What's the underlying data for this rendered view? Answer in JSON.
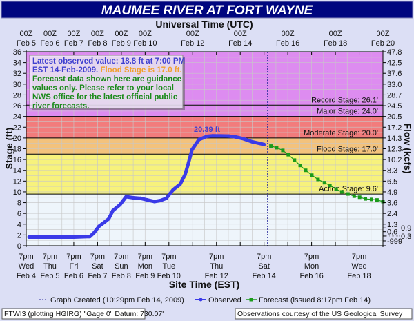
{
  "chart_data": {
    "type": "line",
    "title": "MAUMEE RIVER  AT FORT WAYNE",
    "top_axis_title": "Universal Time (UTC)",
    "top_ticks": [
      {
        "d": 0,
        "l1": "00Z",
        "l2": "Feb 5"
      },
      {
        "d": 1,
        "l1": "00Z",
        "l2": "Feb 6"
      },
      {
        "d": 2,
        "l1": "00Z",
        "l2": "Feb 7"
      },
      {
        "d": 3,
        "l1": "00Z",
        "l2": "Feb 8"
      },
      {
        "d": 4,
        "l1": "00Z",
        "l2": "Feb 9"
      },
      {
        "d": 5,
        "l1": "00Z",
        "l2": "Feb 10"
      },
      {
        "d": 7,
        "l1": "00Z",
        "l2": "Feb 12"
      },
      {
        "d": 9,
        "l1": "00Z",
        "l2": "Feb 14"
      },
      {
        "d": 11,
        "l1": "00Z",
        "l2": "Feb 16"
      },
      {
        "d": 13,
        "l1": "00Z",
        "l2": "Feb 18"
      },
      {
        "d": 15,
        "l1": "00Z",
        "l2": "Feb 20"
      }
    ],
    "xlabel": "Site Time (EST)",
    "x_unit": "days since 7pm EST Wed Feb 4",
    "xlim": [
      0,
      15
    ],
    "bottom_ticks": [
      {
        "d": 0,
        "l1": "7pm",
        "l2": "Wed",
        "l3": "Feb 4"
      },
      {
        "d": 1,
        "l1": "7pm",
        "l2": "Thu",
        "l3": "Feb 5"
      },
      {
        "d": 2,
        "l1": "7pm",
        "l2": "Fri",
        "l3": "Feb 6"
      },
      {
        "d": 3,
        "l1": "7pm",
        "l2": "Sat",
        "l3": "Feb 7"
      },
      {
        "d": 4,
        "l1": "7pm",
        "l2": "Sun",
        "l3": "Feb 8"
      },
      {
        "d": 5,
        "l1": "7pm",
        "l2": "Mon",
        "l3": "Feb 9"
      },
      {
        "d": 6,
        "l1": "7pm",
        "l2": "Tue",
        "l3": "Feb 10"
      },
      {
        "d": 8,
        "l1": "7pm",
        "l2": "Thu",
        "l3": "Feb 12"
      },
      {
        "d": 10,
        "l1": "7pm",
        "l2": "Sat",
        "l3": "Feb 14"
      },
      {
        "d": 12,
        "l1": "7pm",
        "l2": "Mon",
        "l3": "Feb 16"
      },
      {
        "d": 14,
        "l1": "7pm",
        "l2": "Wed",
        "l3": "Feb 18"
      }
    ],
    "ylabel": "Stage (ft)",
    "ylim": [
      0,
      36
    ],
    "y_ticks": [
      0,
      2,
      4,
      6,
      8,
      10,
      12,
      14,
      16,
      18,
      20,
      22,
      24,
      26,
      28,
      30,
      32,
      34,
      36
    ],
    "y2label": "Flow (kcfs)",
    "y2_ticks": [
      {
        "stage": 36,
        "label": "47.8"
      },
      {
        "stage": 34,
        "label": "42.5"
      },
      {
        "stage": 32,
        "label": "37.6"
      },
      {
        "stage": 30,
        "label": "33.0"
      },
      {
        "stage": 28,
        "label": "28.7"
      },
      {
        "stage": 26,
        "label": "24.5"
      },
      {
        "stage": 24,
        "label": "20.5"
      },
      {
        "stage": 22,
        "label": "17.2"
      },
      {
        "stage": 20,
        "label": "14.3"
      },
      {
        "stage": 18,
        "label": "12.3"
      },
      {
        "stage": 16,
        "label": "10.2"
      },
      {
        "stage": 14,
        "label": "8.3"
      },
      {
        "stage": 12,
        "label": "6.5"
      },
      {
        "stage": 10,
        "label": "4.9"
      },
      {
        "stage": 8,
        "label": "3.6"
      },
      {
        "stage": 6,
        "label": "2.4"
      },
      {
        "stage": 4,
        "label": "1.3"
      },
      {
        "stage": 3.3,
        "label": "0.9"
      },
      {
        "stage": 2.6,
        "label": "0.6"
      },
      {
        "stage": 1.8,
        "label": "0.3"
      },
      {
        "stage": 0.9,
        "label": "-999"
      }
    ],
    "bands": [
      {
        "from": 0,
        "to": 9.6,
        "color": "#eef5fb"
      },
      {
        "from": 9.6,
        "to": 17,
        "color": "#f7f27c"
      },
      {
        "from": 17,
        "to": 20,
        "color": "#f3c27c"
      },
      {
        "from": 20,
        "to": 24,
        "color": "#f27c7c"
      },
      {
        "from": 24,
        "to": 36,
        "color": "#dd8cf0"
      }
    ],
    "stages": [
      {
        "name": "record",
        "value": 26.1,
        "label": "Record Stage: 26.1'"
      },
      {
        "name": "major",
        "value": 24.0,
        "label": "Major Stage: 24.0'"
      },
      {
        "name": "moderate",
        "value": 20.0,
        "label": "Moderate Stage: 20.0'"
      },
      {
        "name": "flood",
        "value": 17.0,
        "label": "Flood Stage: 17.0'"
      },
      {
        "name": "action",
        "value": 9.6,
        "label": "Action Stage: 9.6'"
      }
    ],
    "graph_created_d": 10.146,
    "peak_label": "20.39 ft",
    "peak": [
      8.2,
      20.39
    ],
    "series": [
      {
        "name": "Observed",
        "color": "#3a3ae8",
        "points": [
          [
            0.12,
            1.6
          ],
          [
            1.0,
            1.6
          ],
          [
            2.0,
            1.6
          ],
          [
            2.68,
            1.7
          ],
          [
            2.85,
            2.4
          ],
          [
            3.06,
            3.6
          ],
          [
            3.3,
            4.4
          ],
          [
            3.47,
            5.0
          ],
          [
            3.64,
            6.5
          ],
          [
            3.94,
            7.6
          ],
          [
            4.2,
            9.1
          ],
          [
            4.5,
            8.9
          ],
          [
            4.81,
            8.8
          ],
          [
            5.1,
            8.5
          ],
          [
            5.39,
            8.2
          ],
          [
            5.65,
            8.4
          ],
          [
            5.89,
            8.8
          ],
          [
            6.18,
            10.4
          ],
          [
            6.47,
            11.4
          ],
          [
            6.68,
            13.2
          ],
          [
            6.82,
            15.3
          ],
          [
            6.97,
            17.8
          ],
          [
            7.26,
            19.7
          ],
          [
            7.6,
            20.3
          ],
          [
            7.84,
            20.4
          ],
          [
            8.2,
            20.39
          ],
          [
            8.51,
            20.35
          ],
          [
            8.8,
            20.2
          ],
          [
            9.1,
            19.9
          ],
          [
            9.5,
            19.3
          ],
          [
            10.0,
            18.8
          ]
        ]
      },
      {
        "name": "Forecast",
        "color": "#1a9a1a",
        "points": [
          [
            10.29,
            18.5
          ],
          [
            10.53,
            18.2
          ],
          [
            10.79,
            17.7
          ],
          [
            11.02,
            16.9
          ],
          [
            11.28,
            15.9
          ],
          [
            11.52,
            14.9
          ],
          [
            11.75,
            14.0
          ],
          [
            12.01,
            13.1
          ],
          [
            12.27,
            12.3
          ],
          [
            12.54,
            11.7
          ],
          [
            12.77,
            11.2
          ],
          [
            13.03,
            10.5
          ],
          [
            13.27,
            10.0
          ],
          [
            13.53,
            9.6
          ],
          [
            13.79,
            9.2
          ],
          [
            14.02,
            9.0
          ],
          [
            14.26,
            8.7
          ],
          [
            14.52,
            8.6
          ],
          [
            14.75,
            8.5
          ],
          [
            15.0,
            8.2
          ]
        ]
      }
    ],
    "legend": {
      "graph_created": "Graph Created (10:29pm Feb 14, 2009)",
      "observed": "Observed",
      "forecast": "Forecast (issued 8:17pm Feb 14)"
    }
  },
  "info_box": {
    "line1": "Latest observed value: 18.8 ft at 7:00 PM",
    "line2a": "EST 14-Feb-2009.",
    "line2b": "Flood Stage is 17.0 ft.",
    "line3": "Forecast data shown here are guidance",
    "line4": "values only. Please refer to your local",
    "line5": "NWS office for the latest official public",
    "line6": "river forecasts."
  },
  "footer": {
    "left": "FTWI3 (plotting HGIRG)  \"Gage 0\" Datum: 730.07'",
    "right": "Observations courtesy of the  US Geological Survey"
  },
  "colors": {
    "title_bg": "#00067f",
    "page_bg": "#dcdff5",
    "info_blue": "#4040d0",
    "info_orange": "#f0a030",
    "info_green": "#1a8a1a"
  }
}
